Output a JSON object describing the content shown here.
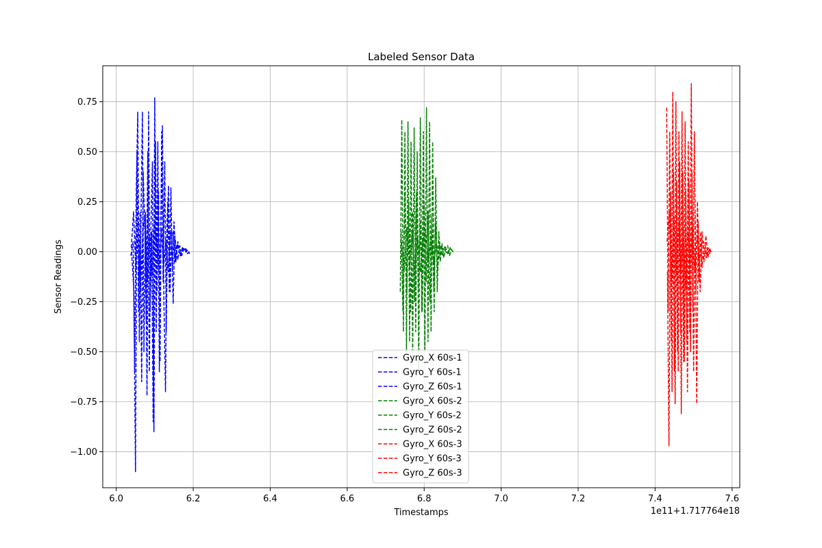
{
  "chart_data": {
    "type": "line",
    "title": "Labeled Sensor Data",
    "xlabel": "Timestamps",
    "ylabel": "Sensor Readings",
    "x_offset_label": "1e11+1.717764e18",
    "xlim": [
      5.965,
      7.62
    ],
    "ylim": [
      -1.18,
      0.93
    ],
    "x_ticks": [
      {
        "value": 6.0,
        "label": "6.0"
      },
      {
        "value": 6.2,
        "label": "6.2"
      },
      {
        "value": 6.4,
        "label": "6.4"
      },
      {
        "value": 6.6,
        "label": "6.6"
      },
      {
        "value": 6.8,
        "label": "6.8"
      },
      {
        "value": 7.0,
        "label": "7.0"
      },
      {
        "value": 7.2,
        "label": "7.2"
      },
      {
        "value": 7.4,
        "label": "7.4"
      },
      {
        "value": 7.6,
        "label": "7.6"
      }
    ],
    "y_ticks": [
      {
        "value": 0.75,
        "label": "0.75"
      },
      {
        "value": 0.5,
        "label": "0.50"
      },
      {
        "value": 0.25,
        "label": "0.25"
      },
      {
        "value": 0.0,
        "label": "0.00"
      },
      {
        "value": -0.25,
        "label": "−0.25"
      },
      {
        "value": -0.5,
        "label": "−0.50"
      },
      {
        "value": -0.75,
        "label": "−0.75"
      },
      {
        "value": -1.0,
        "label": "−1.00"
      }
    ],
    "grid": true,
    "legend_position": "lower-center",
    "line_style": "dashed",
    "series": [
      {
        "name": "Gyro_X 60s-1",
        "color": "#0000ff",
        "x": [
          6.038,
          6.044,
          6.048,
          6.052,
          6.056,
          6.06,
          6.064,
          6.068,
          6.072,
          6.076,
          6.08,
          6.084,
          6.088,
          6.092,
          6.096,
          6.1,
          6.104,
          6.108,
          6.112,
          6.116,
          6.12,
          6.124,
          6.128,
          6.132,
          6.136,
          6.14,
          6.144,
          6.148,
          6.152,
          6.156,
          6.16,
          6.165,
          6.17,
          6.175,
          6.18,
          6.185,
          6.19
        ],
        "y": [
          -0.02,
          0.05,
          -0.6,
          0.3,
          0.7,
          -0.45,
          0.1,
          0.7,
          -0.5,
          0.2,
          -0.72,
          0.7,
          -0.3,
          0.1,
          -0.85,
          0.77,
          -0.4,
          0.55,
          -0.6,
          0.2,
          0.63,
          -0.25,
          -0.7,
          0.15,
          0.33,
          -0.2,
          0.1,
          -0.26,
          0.08,
          0.02,
          -0.04,
          0.03,
          -0.02,
          0.01,
          0.02,
          -0.01,
          0.0
        ]
      },
      {
        "name": "Gyro_Y 60s-1",
        "color": "#0000ff",
        "x": [
          6.04,
          6.046,
          6.05,
          6.054,
          6.058,
          6.062,
          6.066,
          6.07,
          6.074,
          6.078,
          6.082,
          6.086,
          6.09,
          6.094,
          6.098,
          6.102,
          6.106,
          6.11,
          6.114,
          6.118,
          6.122,
          6.126,
          6.13,
          6.134,
          6.138,
          6.142,
          6.146,
          6.15,
          6.155,
          6.16,
          6.166,
          6.172,
          6.178,
          6.184,
          6.19
        ],
        "y": [
          0.0,
          -0.2,
          -1.1,
          0.5,
          -0.3,
          0.2,
          -0.65,
          0.4,
          0.15,
          -0.35,
          0.5,
          -0.6,
          0.1,
          0.45,
          -0.9,
          0.55,
          -0.2,
          0.3,
          -0.55,
          0.6,
          -0.15,
          0.45,
          -0.4,
          0.25,
          -0.2,
          0.32,
          -0.1,
          0.15,
          -0.05,
          0.05,
          -0.02,
          0.02,
          0.01,
          -0.01,
          0.0
        ]
      },
      {
        "name": "Gyro_Z 60s-1",
        "color": "#0000ff",
        "x": [
          6.039,
          6.045,
          6.051,
          6.057,
          6.063,
          6.069,
          6.075,
          6.081,
          6.087,
          6.093,
          6.099,
          6.105,
          6.111,
          6.117,
          6.123,
          6.129,
          6.135,
          6.141,
          6.147,
          6.153,
          6.159,
          6.167,
          6.175,
          6.183,
          6.191
        ],
        "y": [
          0.02,
          0.2,
          -0.1,
          0.15,
          -0.2,
          0.1,
          0.18,
          -0.15,
          0.08,
          -0.12,
          0.14,
          0.05,
          -0.1,
          0.12,
          -0.08,
          0.06,
          -0.1,
          0.09,
          0.1,
          -0.05,
          0.04,
          -0.02,
          0.02,
          0.01,
          -0.01
        ]
      },
      {
        "name": "Gyro_X 60s-2",
        "color": "#008000",
        "x": [
          6.738,
          6.742,
          6.746,
          6.75,
          6.754,
          6.758,
          6.762,
          6.766,
          6.77,
          6.774,
          6.778,
          6.782,
          6.786,
          6.79,
          6.794,
          6.798,
          6.802,
          6.806,
          6.81,
          6.814,
          6.818,
          6.822,
          6.826,
          6.83,
          6.834,
          6.838,
          6.842,
          6.846,
          6.851,
          6.856,
          6.861,
          6.866,
          6.871,
          6.876
        ],
        "y": [
          -0.2,
          0.66,
          -0.4,
          0.6,
          -0.5,
          0.65,
          -0.45,
          0.55,
          -0.55,
          0.62,
          -0.4,
          0.5,
          -0.6,
          0.67,
          -0.3,
          0.6,
          -0.5,
          0.72,
          -0.45,
          0.65,
          -0.4,
          0.55,
          -0.3,
          0.37,
          -0.2,
          0.1,
          -0.05,
          0.04,
          -0.03,
          0.02,
          0.03,
          -0.02,
          0.01,
          0.0
        ]
      },
      {
        "name": "Gyro_Y 60s-2",
        "color": "#008000",
        "x": [
          6.74,
          6.745,
          6.75,
          6.755,
          6.76,
          6.765,
          6.77,
          6.775,
          6.78,
          6.785,
          6.79,
          6.795,
          6.8,
          6.805,
          6.81,
          6.815,
          6.82,
          6.825,
          6.83,
          6.835,
          6.84,
          6.847,
          6.854,
          6.861,
          6.868,
          6.875
        ],
        "y": [
          0.1,
          -0.3,
          0.3,
          -0.2,
          0.25,
          -0.3,
          0.2,
          -0.25,
          0.3,
          -0.2,
          0.15,
          -0.3,
          0.25,
          -0.15,
          0.2,
          -0.25,
          0.18,
          -0.2,
          0.15,
          -0.1,
          0.05,
          -0.02,
          0.03,
          -0.01,
          0.02,
          0.0
        ]
      },
      {
        "name": "Gyro_Z 60s-2",
        "color": "#008000",
        "x": [
          6.741,
          6.748,
          6.755,
          6.762,
          6.769,
          6.776,
          6.783,
          6.79,
          6.797,
          6.804,
          6.811,
          6.818,
          6.825,
          6.832,
          6.839,
          6.846,
          6.853,
          6.86,
          6.867,
          6.874
        ],
        "y": [
          0.05,
          -0.1,
          0.12,
          -0.08,
          0.1,
          -0.12,
          0.08,
          -0.1,
          0.06,
          0.1,
          -0.05,
          0.08,
          -0.06,
          0.04,
          -0.03,
          0.02,
          0.01,
          -0.01,
          0.02,
          0.0
        ]
      },
      {
        "name": "Gyro_X 60s-3",
        "color": "#ff0000",
        "x": [
          7.43,
          7.434,
          7.438,
          7.442,
          7.446,
          7.45,
          7.454,
          7.458,
          7.462,
          7.466,
          7.47,
          7.474,
          7.478,
          7.482,
          7.486,
          7.49,
          7.494,
          7.498,
          7.502,
          7.506,
          7.51,
          7.514,
          7.518,
          7.522,
          7.526,
          7.53,
          7.534,
          7.538,
          7.542,
          7.546
        ],
        "y": [
          0.72,
          -0.3,
          0.6,
          -0.45,
          0.8,
          -0.6,
          0.75,
          -0.5,
          0.6,
          -0.4,
          0.7,
          -0.55,
          0.65,
          -0.45,
          0.55,
          -0.4,
          0.84,
          -0.3,
          0.6,
          -0.2,
          0.25,
          -0.15,
          0.1,
          -0.08,
          0.05,
          0.03,
          -0.02,
          0.02,
          -0.01,
          0.0
        ]
      },
      {
        "name": "Gyro_Y 60s-3",
        "color": "#ff0000",
        "x": [
          7.432,
          7.436,
          7.44,
          7.444,
          7.448,
          7.452,
          7.456,
          7.46,
          7.464,
          7.468,
          7.472,
          7.476,
          7.48,
          7.484,
          7.488,
          7.492,
          7.496,
          7.5,
          7.504,
          7.508,
          7.512,
          7.517,
          7.522,
          7.527,
          7.532,
          7.537,
          7.542,
          7.546
        ],
        "y": [
          -0.1,
          -0.97,
          0.3,
          -0.7,
          0.4,
          -0.76,
          0.35,
          -0.6,
          0.45,
          -0.81,
          0.4,
          -0.55,
          0.3,
          -0.7,
          0.35,
          -0.5,
          0.4,
          -0.6,
          0.2,
          -0.76,
          0.15,
          -0.2,
          0.1,
          -0.05,
          0.08,
          -0.03,
          0.02,
          -0.01
        ]
      },
      {
        "name": "Gyro_Z 60s-3",
        "color": "#ff0000",
        "x": [
          7.431,
          7.437,
          7.443,
          7.449,
          7.455,
          7.461,
          7.467,
          7.473,
          7.479,
          7.485,
          7.491,
          7.497,
          7.503,
          7.509,
          7.515,
          7.521,
          7.527,
          7.533,
          7.539,
          7.545
        ],
        "y": [
          0.05,
          0.2,
          -0.15,
          0.18,
          -0.12,
          0.15,
          -0.1,
          0.12,
          -0.18,
          0.1,
          -0.08,
          0.12,
          -0.1,
          0.08,
          -0.05,
          0.04,
          0.02,
          -0.03,
          0.01,
          0.0
        ]
      }
    ]
  }
}
